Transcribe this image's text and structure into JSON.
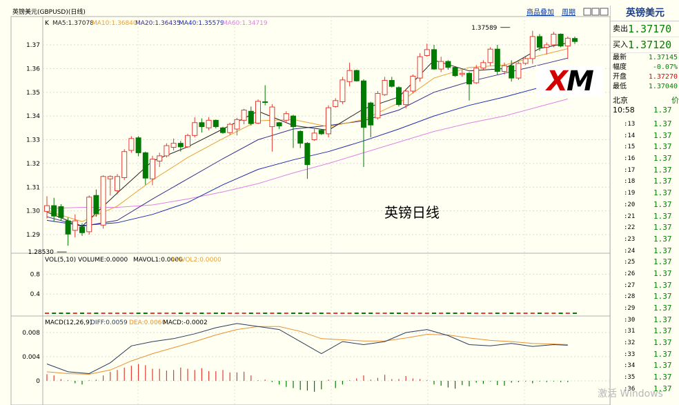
{
  "header": {
    "title": "英镑美元(GBPUSD)(日线)",
    "links": [
      "商品叠加",
      "周期"
    ]
  },
  "main_legend": {
    "k": "K",
    "ma5": "MA5:1.37078",
    "ma10": "MA10:1.36840",
    "ma20": "MA20:1.36435",
    "ma40": "MA40:1.35579",
    "ma60": "MA60:1.34719"
  },
  "vol_legend": {
    "vol": "VOL(5,10) VOLUME:0.0000",
    "mavol1": "MAVOL1:0.0000",
    "mavol2": "MAVOL2:0.0000"
  },
  "macd_legend": {
    "macd": "MACD(12,26,9)",
    "diff": "DIFF:0.0059",
    "dea": "DEA:0.0060",
    "macdv": "MACD:-0.0002"
  },
  "center_label": "英镑日线",
  "xm_logo": "XM",
  "watermark": "激活 Windows",
  "colors": {
    "up": "#e53935",
    "down": "#007a00",
    "ma5": "#222222",
    "ma10": "#e8a030",
    "ma20": "#3a2a8a",
    "ma40": "#1a2ab0",
    "ma60": "#e080e8",
    "diff": "#2a3a5a",
    "dea": "#e89030"
  },
  "quote": {
    "title": "英镑美元",
    "sell_label": "卖出",
    "sell": "1.37170",
    "buy_label": "买入",
    "buy": "1.37120",
    "rows": [
      {
        "label": "最新",
        "value": "1.37145",
        "color": "#008000"
      },
      {
        "label": "幅度",
        "value": "-0.07%",
        "color": "#008000"
      },
      {
        "label": "开盘",
        "value": "1.37270",
        "color": "#e00000"
      },
      {
        "label": "最低",
        "value": "1.37040",
        "color": "#008000"
      }
    ],
    "beijing_label": "北京",
    "beijing_val_col": "价",
    "first_time": "10:58",
    "first_price": "1.37",
    "ticks": [
      {
        "t": "13",
        "p": "1.37"
      },
      {
        "t": "14",
        "p": "1.37"
      },
      {
        "t": "15",
        "p": "1.37"
      },
      {
        "t": "16",
        "p": "1.37"
      },
      {
        "t": "17",
        "p": "1.37"
      },
      {
        "t": "18",
        "p": "1.37"
      },
      {
        "t": "19",
        "p": "1.37"
      },
      {
        "t": "20",
        "p": "1.37"
      },
      {
        "t": "21",
        "p": "1.37"
      },
      {
        "t": "22",
        "p": "1.37"
      },
      {
        "t": "23",
        "p": "1.37"
      },
      {
        "t": "24",
        "p": "1.37"
      },
      {
        "t": "25",
        "p": "1.37"
      },
      {
        "t": "26",
        "p": "1.37"
      },
      {
        "t": "27",
        "p": "1.37"
      },
      {
        "t": "28",
        "p": "1.37"
      },
      {
        "t": "29",
        "p": "1.37"
      },
      {
        "t": "30",
        "p": "1.37"
      },
      {
        "t": "31",
        "p": "1.37"
      },
      {
        "t": "32",
        "p": "1.37"
      },
      {
        "t": "33",
        "p": "1.37"
      },
      {
        "t": "34",
        "p": "1.37"
      },
      {
        "t": "35",
        "p": "1.37"
      },
      {
        "t": "36",
        "p": "1.37"
      }
    ]
  },
  "chart_data": [
    {
      "type": "candlestick",
      "title": "英镑美元(GBPUSD)(日线)",
      "ylim": [
        1.283,
        1.379
      ],
      "yticks": [
        1.29,
        1.3,
        1.31,
        1.32,
        1.33,
        1.34,
        1.35,
        1.36,
        1.37
      ],
      "ytick_labels": [
        "1.29",
        "1.30",
        "1.31",
        "1.32",
        "1.33",
        "1.34",
        "1.35",
        "1.36",
        "1.37"
      ],
      "annotations": [
        {
          "text": "1.37589",
          "index": 66,
          "value": 1.37589
        },
        {
          "text": "1.28530",
          "index": 3,
          "value": 1.2853
        }
      ],
      "candles": [
        {
          "o": 1.2998,
          "h": 1.3062,
          "l": 1.2968,
          "c": 1.3022
        },
        {
          "o": 1.3022,
          "h": 1.3055,
          "l": 1.2955,
          "c": 1.2978
        },
        {
          "o": 1.3018,
          "h": 1.3028,
          "l": 1.2958,
          "c": 1.2972
        },
        {
          "o": 1.2958,
          "h": 1.2972,
          "l": 1.2853,
          "c": 1.2902
        },
        {
          "o": 1.2918,
          "h": 1.2985,
          "l": 1.2888,
          "c": 1.2958
        },
        {
          "o": 1.2932,
          "h": 1.2948,
          "l": 1.2895,
          "c": 1.2908
        },
        {
          "o": 1.2912,
          "h": 1.3065,
          "l": 1.29,
          "c": 1.3058
        },
        {
          "o": 1.3065,
          "h": 1.309,
          "l": 1.2975,
          "c": 1.2988
        },
        {
          "o": 1.294,
          "h": 1.315,
          "l": 1.2925,
          "c": 1.3145
        },
        {
          "o": 1.3135,
          "h": 1.315,
          "l": 1.3065,
          "c": 1.3145
        },
        {
          "o": 1.3085,
          "h": 1.3155,
          "l": 1.307,
          "c": 1.3145
        },
        {
          "o": 1.314,
          "h": 1.326,
          "l": 1.313,
          "c": 1.325
        },
        {
          "o": 1.3255,
          "h": 1.3315,
          "l": 1.3245,
          "c": 1.3305
        },
        {
          "o": 1.3308,
          "h": 1.3315,
          "l": 1.323,
          "c": 1.3245
        },
        {
          "o": 1.3245,
          "h": 1.325,
          "l": 1.311,
          "c": 1.3138
        },
        {
          "o": 1.3135,
          "h": 1.3232,
          "l": 1.3108,
          "c": 1.3218
        },
        {
          "o": 1.321,
          "h": 1.3245,
          "l": 1.3185,
          "c": 1.3232
        },
        {
          "o": 1.3232,
          "h": 1.3285,
          "l": 1.3225,
          "c": 1.3275
        },
        {
          "o": 1.3268,
          "h": 1.3305,
          "l": 1.3255,
          "c": 1.3285
        },
        {
          "o": 1.3285,
          "h": 1.3295,
          "l": 1.325,
          "c": 1.327
        },
        {
          "o": 1.327,
          "h": 1.3325,
          "l": 1.3265,
          "c": 1.3318
        },
        {
          "o": 1.3318,
          "h": 1.3395,
          "l": 1.331,
          "c": 1.3372
        },
        {
          "o": 1.3372,
          "h": 1.339,
          "l": 1.333,
          "c": 1.3355
        },
        {
          "o": 1.335,
          "h": 1.3395,
          "l": 1.334,
          "c": 1.3382
        },
        {
          "o": 1.3382,
          "h": 1.3385,
          "l": 1.3348,
          "c": 1.3355
        },
        {
          "o": 1.335,
          "h": 1.3355,
          "l": 1.3325,
          "c": 1.333
        },
        {
          "o": 1.333,
          "h": 1.3372,
          "l": 1.332,
          "c": 1.3365
        },
        {
          "o": 1.3345,
          "h": 1.3392,
          "l": 1.3318,
          "c": 1.3385
        },
        {
          "o": 1.3382,
          "h": 1.343,
          "l": 1.3365,
          "c": 1.3425
        },
        {
          "o": 1.342,
          "h": 1.344,
          "l": 1.336,
          "c": 1.3368
        },
        {
          "o": 1.337,
          "h": 1.347,
          "l": 1.3365,
          "c": 1.3462
        },
        {
          "o": 1.346,
          "h": 1.353,
          "l": 1.3445,
          "c": 1.3458
        },
        {
          "o": 1.3355,
          "h": 1.345,
          "l": 1.325,
          "c": 1.3438
        },
        {
          "o": 1.3372,
          "h": 1.3375,
          "l": 1.3345,
          "c": 1.3358
        },
        {
          "o": 1.3382,
          "h": 1.342,
          "l": 1.337,
          "c": 1.341
        },
        {
          "o": 1.34,
          "h": 1.3405,
          "l": 1.3265,
          "c": 1.3355
        },
        {
          "o": 1.3335,
          "h": 1.334,
          "l": 1.3265,
          "c": 1.3285
        },
        {
          "o": 1.3285,
          "h": 1.329,
          "l": 1.3135,
          "c": 1.3195
        },
        {
          "o": 1.33,
          "h": 1.3345,
          "l": 1.3295,
          "c": 1.3328
        },
        {
          "o": 1.334,
          "h": 1.3345,
          "l": 1.332,
          "c": 1.3325
        },
        {
          "o": 1.3325,
          "h": 1.3445,
          "l": 1.331,
          "c": 1.3435
        },
        {
          "o": 1.344,
          "h": 1.3475,
          "l": 1.3435,
          "c": 1.3465
        },
        {
          "o": 1.346,
          "h": 1.3565,
          "l": 1.345,
          "c": 1.3552
        },
        {
          "o": 1.3545,
          "h": 1.3625,
          "l": 1.3525,
          "c": 1.3592
        },
        {
          "o": 1.3592,
          "h": 1.3595,
          "l": 1.3545,
          "c": 1.3548
        },
        {
          "o": 1.3548,
          "h": 1.3555,
          "l": 1.3185,
          "c": 1.3352
        },
        {
          "o": 1.3455,
          "h": 1.346,
          "l": 1.331,
          "c": 1.3362
        },
        {
          "o": 1.3392,
          "h": 1.3505,
          "l": 1.3385,
          "c": 1.3495
        },
        {
          "o": 1.349,
          "h": 1.3565,
          "l": 1.3485,
          "c": 1.355
        },
        {
          "o": 1.355,
          "h": 1.3565,
          "l": 1.352,
          "c": 1.3525
        },
        {
          "o": 1.352,
          "h": 1.3525,
          "l": 1.344,
          "c": 1.3448
        },
        {
          "o": 1.3448,
          "h": 1.3515,
          "l": 1.3432,
          "c": 1.3505
        },
        {
          "o": 1.3505,
          "h": 1.3575,
          "l": 1.3495,
          "c": 1.3568
        },
        {
          "o": 1.356,
          "h": 1.3665,
          "l": 1.3545,
          "c": 1.365
        },
        {
          "o": 1.3655,
          "h": 1.3705,
          "l": 1.365,
          "c": 1.368
        },
        {
          "o": 1.368,
          "h": 1.37,
          "l": 1.3595,
          "c": 1.3598
        },
        {
          "o": 1.3598,
          "h": 1.365,
          "l": 1.3585,
          "c": 1.363
        },
        {
          "o": 1.363,
          "h": 1.3635,
          "l": 1.3595,
          "c": 1.3605
        },
        {
          "o": 1.3605,
          "h": 1.361,
          "l": 1.3565,
          "c": 1.357
        },
        {
          "o": 1.3575,
          "h": 1.3595,
          "l": 1.3565,
          "c": 1.358
        },
        {
          "o": 1.358,
          "h": 1.3585,
          "l": 1.3465,
          "c": 1.3535
        },
        {
          "o": 1.354,
          "h": 1.3615,
          "l": 1.3535,
          "c": 1.3602
        },
        {
          "o": 1.3602,
          "h": 1.3635,
          "l": 1.3595,
          "c": 1.3625
        },
        {
          "o": 1.3625,
          "h": 1.369,
          "l": 1.3612,
          "c": 1.3682
        },
        {
          "o": 1.3682,
          "h": 1.37,
          "l": 1.3575,
          "c": 1.3588
        },
        {
          "o": 1.3588,
          "h": 1.3625,
          "l": 1.3575,
          "c": 1.3612
        },
        {
          "o": 1.3612,
          "h": 1.3635,
          "l": 1.3545,
          "c": 1.356
        },
        {
          "o": 1.356,
          "h": 1.3628,
          "l": 1.3552,
          "c": 1.3622
        },
        {
          "o": 1.3622,
          "h": 1.365,
          "l": 1.3615,
          "c": 1.3642
        },
        {
          "o": 1.3642,
          "h": 1.3759,
          "l": 1.362,
          "c": 1.3735
        },
        {
          "o": 1.3735,
          "h": 1.3745,
          "l": 1.3675,
          "c": 1.369
        },
        {
          "o": 1.369,
          "h": 1.371,
          "l": 1.366,
          "c": 1.37
        },
        {
          "o": 1.37,
          "h": 1.3755,
          "l": 1.369,
          "c": 1.3745
        },
        {
          "o": 1.3745,
          "h": 1.3748,
          "l": 1.369,
          "c": 1.3695
        },
        {
          "o": 1.3695,
          "h": 1.3735,
          "l": 1.364,
          "c": 1.3728
        },
        {
          "o": 1.3727,
          "h": 1.3735,
          "l": 1.3704,
          "c": 1.3714
        }
      ],
      "ma": {
        "ma5": {
          "x": [
            0,
            5,
            10,
            15,
            20,
            25,
            30,
            35,
            40,
            45,
            50,
            55,
            60,
            65,
            70,
            74
          ],
          "y": [
            1.2995,
            1.2935,
            1.3075,
            1.321,
            1.327,
            1.3345,
            1.342,
            1.336,
            1.334,
            1.343,
            1.348,
            1.3635,
            1.359,
            1.36,
            1.3685,
            1.3708
          ]
        },
        "ma10": {
          "x": [
            0,
            5,
            10,
            15,
            20,
            25,
            30,
            35,
            40,
            45,
            50,
            55,
            60,
            65,
            70,
            74
          ],
          "y": [
            1.3,
            1.2955,
            1.302,
            1.313,
            1.3225,
            1.3305,
            1.338,
            1.3385,
            1.3355,
            1.3385,
            1.3455,
            1.356,
            1.3605,
            1.3615,
            1.3655,
            1.3684
          ]
        },
        "ma20": {
          "x": [
            0,
            5,
            10,
            15,
            20,
            25,
            30,
            35,
            40,
            45,
            50,
            55,
            60,
            65,
            70,
            74
          ],
          "y": [
            1.2975,
            1.2935,
            1.296,
            1.305,
            1.3135,
            1.322,
            1.33,
            1.3345,
            1.336,
            1.338,
            1.3425,
            1.35,
            1.3545,
            1.358,
            1.3615,
            1.3644
          ]
        },
        "ma40": {
          "x": [
            0,
            5,
            10,
            15,
            20,
            25,
            30,
            35,
            40,
            45,
            50,
            55,
            60,
            65,
            70,
            74
          ],
          "y": [
            1.296,
            1.2938,
            1.295,
            1.2985,
            1.3035,
            1.311,
            1.3175,
            1.3215,
            1.325,
            1.3295,
            1.3345,
            1.34,
            1.3445,
            1.348,
            1.352,
            1.3558
          ]
        },
        "ma60": {
          "x": [
            0,
            5,
            10,
            15,
            20,
            25,
            30,
            35,
            40,
            45,
            50,
            55,
            60,
            65,
            70,
            74
          ],
          "y": [
            1.301,
            1.3015,
            1.3015,
            1.3025,
            1.305,
            1.308,
            1.3115,
            1.316,
            1.32,
            1.3245,
            1.329,
            1.3335,
            1.337,
            1.34,
            1.344,
            1.3472
          ]
        }
      }
    },
    {
      "type": "bar",
      "title": "VOL(5,10) VOLUME:0.0000",
      "ylim": [
        0,
        1.0
      ],
      "yticks": [
        0.4,
        0.8
      ],
      "ytick_labels": [
        "0.4",
        "0.8"
      ],
      "values_all": 0.0
    },
    {
      "type": "bar+line",
      "title": "MACD(12,26,9)",
      "ylim": [
        -0.003,
        0.0095
      ],
      "yticks": [
        0,
        0.004,
        0.008
      ],
      "ytick_labels": [
        "0",
        "0.004",
        "0.008"
      ],
      "diff": {
        "x": [
          0,
          3,
          6,
          9,
          12,
          15,
          18,
          21,
          24,
          27,
          30,
          33,
          36,
          39,
          42,
          45,
          48,
          51,
          54,
          57,
          60,
          63,
          66,
          69,
          72,
          74
        ],
        "y": [
          0.0028,
          0.0015,
          0.0012,
          0.003,
          0.0058,
          0.0065,
          0.007,
          0.0078,
          0.0088,
          0.0095,
          0.009,
          0.0085,
          0.0065,
          0.0045,
          0.0065,
          0.006,
          0.0065,
          0.008,
          0.0085,
          0.0075,
          0.006,
          0.0058,
          0.0062,
          0.0057,
          0.006,
          0.0059
        ]
      },
      "dea": {
        "x": [
          0,
          3,
          6,
          9,
          12,
          15,
          18,
          21,
          24,
          27,
          30,
          33,
          36,
          39,
          42,
          45,
          48,
          51,
          54,
          57,
          60,
          63,
          66,
          69,
          72,
          74
        ],
        "y": [
          0.0015,
          0.0012,
          0.0011,
          0.0018,
          0.0033,
          0.0045,
          0.0055,
          0.0065,
          0.0076,
          0.0085,
          0.009,
          0.009,
          0.0082,
          0.007,
          0.0068,
          0.0066,
          0.0066,
          0.0071,
          0.0077,
          0.0076,
          0.0071,
          0.0067,
          0.0065,
          0.0062,
          0.0061,
          0.006
        ]
      },
      "histogram": [
        0.0011,
        0.0009,
        0.0003,
        0.0001,
        -0.0004,
        -0.0006,
        0.0001,
        0.0002,
        0.0009,
        0.0015,
        0.0018,
        0.0022,
        0.0025,
        0.0028,
        0.0026,
        0.002,
        0.002,
        0.0017,
        0.0018,
        0.0022,
        0.002,
        0.0018,
        0.0021,
        0.0016,
        0.0016,
        0.0018,
        0.0014,
        0.0014,
        0.0015,
        0.0009,
        0.0001,
        0.0002,
        -0.0002,
        -0.0006,
        -0.001,
        -0.0012,
        -0.0015,
        -0.0016,
        -0.0018,
        -0.0014,
        0.0002,
        -0.0012,
        -0.0006,
        0.0001,
        0.0004,
        0.0009,
        0.0002,
        0.0005,
        0.001,
        0.0003,
        0.0003,
        0.0008,
        0.0004,
        0.0003,
        0.0001,
        -0.0006,
        -0.0008,
        -0.0011,
        -0.0013,
        -0.0007,
        -0.0009,
        -0.0003,
        -0.0005,
        -0.0001,
        -0.0007,
        -0.0008,
        -0.0003,
        -0.0002,
        -0.0001,
        -0.0004,
        -0.0001,
        -0.0002,
        -0.0001,
        -0.0002,
        -0.0002
      ]
    }
  ]
}
